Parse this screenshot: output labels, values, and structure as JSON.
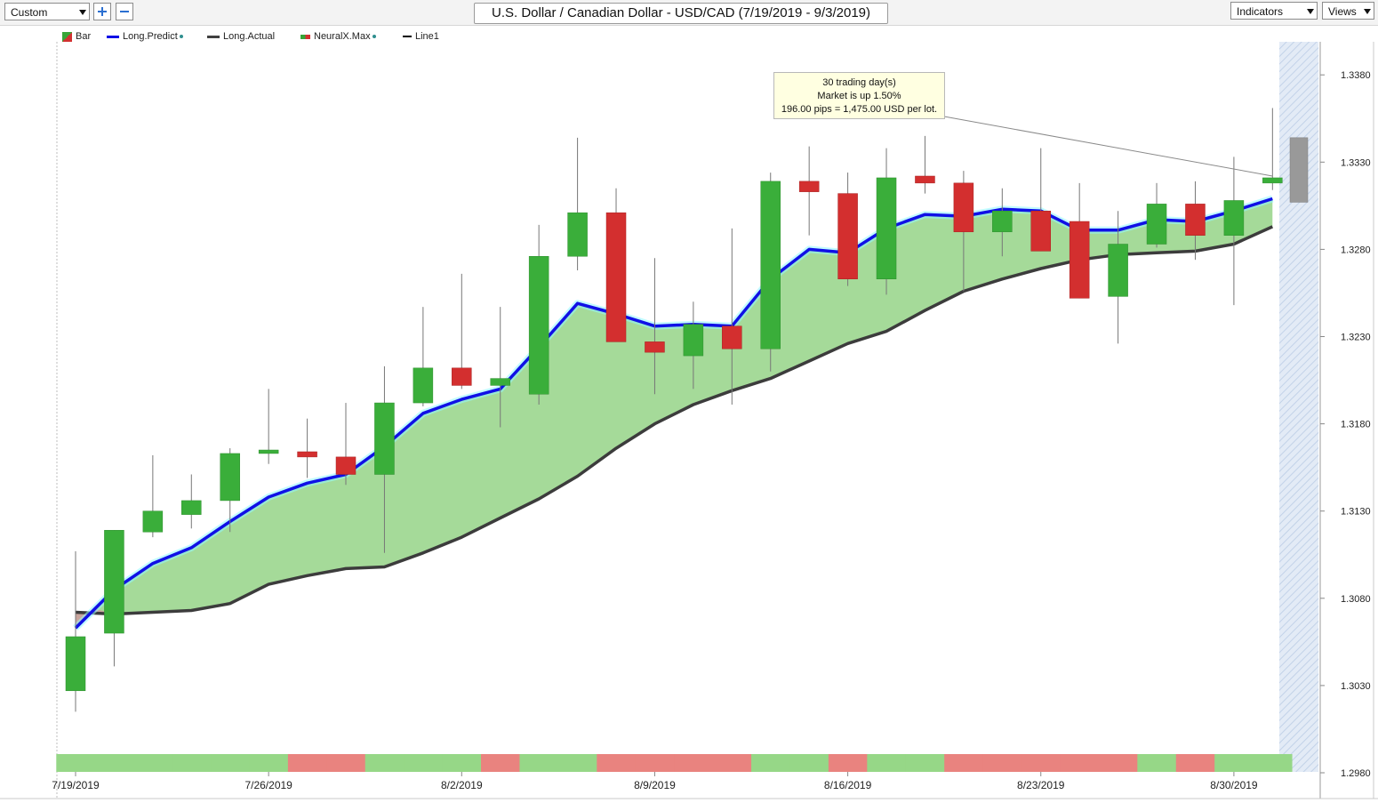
{
  "toolbar": {
    "preset_select": "Custom",
    "zoom_in_label": "+",
    "zoom_out_label": "−",
    "title": "U.S. Dollar / Canadian Dollar - USD/CAD (7/19/2019 - 9/3/2019)",
    "indicators_label": "Indicators",
    "views_label": "Views"
  },
  "legend": [
    {
      "label": "Bar",
      "icon": "bar-swatch-icon"
    },
    {
      "label": "Long.Predict",
      "icon": "blue-line-icon"
    },
    {
      "label": "Long.Actual",
      "icon": "dark-line-icon"
    },
    {
      "label": "NeuralX.Max",
      "icon": "neural-swatch-icon"
    },
    {
      "label": "Line1",
      "icon": "black-line-icon"
    }
  ],
  "tooltip": {
    "line1": "30 trading day(s)",
    "line2": "Market is up 1.50%",
    "line3": "196.00 pips = 1,475.00 USD per lot."
  },
  "chart_data": {
    "type": "candlestick",
    "y_ticks": [
      "1.3380",
      "1.3330",
      "1.3280",
      "1.3230",
      "1.3180",
      "1.3130",
      "1.3080",
      "1.3030",
      "1.2980"
    ],
    "ylim": [
      1.298,
      1.3405
    ],
    "x_tick_labels": [
      "7/19/2019",
      "7/26/2019",
      "8/2/2019",
      "8/9/2019",
      "8/16/2019",
      "8/23/2019",
      "8/30/2019"
    ],
    "x_tick_candle_index": [
      0,
      5,
      10,
      15,
      20,
      25,
      30
    ],
    "candles": [
      {
        "o": 1.3027,
        "h": 1.3107,
        "l": 1.3015,
        "c": 1.3058
      },
      {
        "o": 1.306,
        "h": 1.3119,
        "l": 1.3041,
        "c": 1.3119
      },
      {
        "o": 1.3118,
        "h": 1.3162,
        "l": 1.3115,
        "c": 1.313
      },
      {
        "o": 1.3128,
        "h": 1.3151,
        "l": 1.312,
        "c": 1.3136
      },
      {
        "o": 1.3136,
        "h": 1.3166,
        "l": 1.3118,
        "c": 1.3163
      },
      {
        "o": 1.3163,
        "h": 1.32,
        "l": 1.3157,
        "c": 1.3165
      },
      {
        "o": 1.3164,
        "h": 1.3183,
        "l": 1.3149,
        "c": 1.3161
      },
      {
        "o": 1.3161,
        "h": 1.3192,
        "l": 1.3145,
        "c": 1.3151
      },
      {
        "o": 1.3151,
        "h": 1.3213,
        "l": 1.3106,
        "c": 1.3192
      },
      {
        "o": 1.3192,
        "h": 1.3247,
        "l": 1.319,
        "c": 1.3212
      },
      {
        "o": 1.3212,
        "h": 1.3266,
        "l": 1.32,
        "c": 1.3202
      },
      {
        "o": 1.3202,
        "h": 1.3247,
        "l": 1.3178,
        "c": 1.3206
      },
      {
        "o": 1.3197,
        "h": 1.3294,
        "l": 1.3191,
        "c": 1.3276
      },
      {
        "o": 1.3276,
        "h": 1.3344,
        "l": 1.3268,
        "c": 1.3301
      },
      {
        "o": 1.3301,
        "h": 1.3315,
        "l": 1.3228,
        "c": 1.3227
      },
      {
        "o": 1.3227,
        "h": 1.3275,
        "l": 1.3197,
        "c": 1.3221
      },
      {
        "o": 1.3219,
        "h": 1.325,
        "l": 1.32,
        "c": 1.3237
      },
      {
        "o": 1.3236,
        "h": 1.3292,
        "l": 1.3191,
        "c": 1.3223
      },
      {
        "o": 1.3223,
        "h": 1.3324,
        "l": 1.321,
        "c": 1.3319
      },
      {
        "o": 1.3319,
        "h": 1.3339,
        "l": 1.3288,
        "c": 1.3313
      },
      {
        "o": 1.3312,
        "h": 1.3324,
        "l": 1.3259,
        "c": 1.3263
      },
      {
        "o": 1.3263,
        "h": 1.3338,
        "l": 1.3254,
        "c": 1.3321
      },
      {
        "o": 1.3322,
        "h": 1.3345,
        "l": 1.3312,
        "c": 1.3318
      },
      {
        "o": 1.3318,
        "h": 1.3325,
        "l": 1.3256,
        "c": 1.329
      },
      {
        "o": 1.329,
        "h": 1.3315,
        "l": 1.3276,
        "c": 1.3302
      },
      {
        "o": 1.3302,
        "h": 1.3338,
        "l": 1.3279,
        "c": 1.3279
      },
      {
        "o": 1.3296,
        "h": 1.3318,
        "l": 1.3252,
        "c": 1.3252
      },
      {
        "o": 1.3253,
        "h": 1.3302,
        "l": 1.3226,
        "c": 1.3283
      },
      {
        "o": 1.3283,
        "h": 1.3318,
        "l": 1.3281,
        "c": 1.3306
      },
      {
        "o": 1.3306,
        "h": 1.3319,
        "l": 1.3274,
        "c": 1.3288
      },
      {
        "o": 1.3288,
        "h": 1.3333,
        "l": 1.3248,
        "c": 1.3308
      },
      {
        "o": 1.3318,
        "h": 1.3361,
        "l": 1.3314,
        "c": 1.3321
      }
    ],
    "series": [
      {
        "name": "Long.Predict",
        "color": "#1010e6",
        "values": [
          1.3063,
          1.3085,
          1.31,
          1.3109,
          1.3124,
          1.3138,
          1.3146,
          1.3151,
          1.3167,
          1.3186,
          1.3194,
          1.32,
          1.3224,
          1.3249,
          1.3243,
          1.3236,
          1.3237,
          1.3236,
          1.3263,
          1.328,
          1.3278,
          1.3292,
          1.33,
          1.3299,
          1.3303,
          1.3302,
          1.3291,
          1.3291,
          1.3297,
          1.3296,
          1.3302,
          1.3309
        ]
      },
      {
        "name": "Long.Actual",
        "color": "#3c3c3c",
        "values": [
          1.3072,
          1.3071,
          1.3072,
          1.3073,
          1.3077,
          1.3088,
          1.3093,
          1.3097,
          1.3098,
          1.3106,
          1.3115,
          1.3126,
          1.3137,
          1.315,
          1.3166,
          1.318,
          1.3191,
          1.3199,
          1.3206,
          1.3216,
          1.3226,
          1.3233,
          1.3245,
          1.3256,
          1.3263,
          1.3269,
          1.3274,
          1.3277,
          1.3278,
          1.3279,
          1.3283,
          1.3293
        ]
      }
    ],
    "neural_strip": [
      "up",
      "up",
      "up",
      "up",
      "up",
      "up",
      "down",
      "down",
      "up",
      "up",
      "up",
      "down",
      "up",
      "up",
      "down",
      "down",
      "down",
      "down",
      "up",
      "up",
      "down",
      "up",
      "up",
      "down",
      "down",
      "down",
      "down",
      "down",
      "up",
      "down",
      "up",
      "up"
    ],
    "forecast_bar": {
      "high": 1.3344,
      "low": 1.3307
    },
    "colors": {
      "up": "#3aae3a",
      "down": "#d32f2f",
      "fill": "#a5da99",
      "strip_up": "#96d787",
      "strip_down": "#e9837f",
      "forecast": "#999999"
    }
  }
}
